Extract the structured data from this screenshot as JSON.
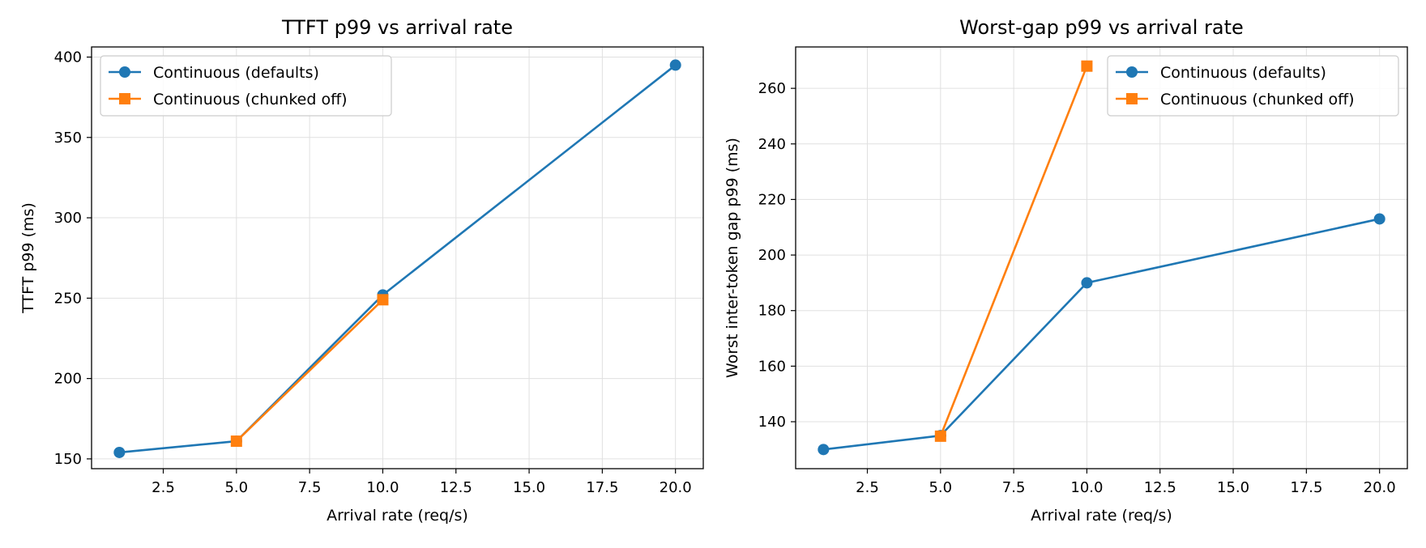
{
  "chart_data": [
    {
      "type": "line",
      "title": "TTFT p99 vs arrival rate",
      "xlabel": "Arrival rate (req/s)",
      "ylabel": "TTFT p99 (ms)",
      "xlim": [
        0.05,
        20.95
      ],
      "ylim": [
        143.9,
        406.3
      ],
      "xticks": [
        2.5,
        5.0,
        7.5,
        10.0,
        12.5,
        15.0,
        17.5,
        20.0
      ],
      "xtick_labels": [
        "2.5",
        "5.0",
        "7.5",
        "10.0",
        "12.5",
        "15.0",
        "17.5",
        "20.0"
      ],
      "yticks": [
        150,
        200,
        250,
        300,
        350,
        400
      ],
      "ytick_labels": [
        "150",
        "200",
        "250",
        "300",
        "350",
        "400"
      ],
      "grid": true,
      "legend": "upper-left",
      "series": [
        {
          "name": "Continuous (defaults)",
          "color": "#1f77b4",
          "marker": "circle",
          "x": [
            1,
            5,
            10,
            20
          ],
          "y": [
            154,
            161,
            252,
            395
          ]
        },
        {
          "name": "Continuous (chunked off)",
          "color": "#ff7f0e",
          "marker": "square",
          "x": [
            5,
            10
          ],
          "y": [
            161,
            249
          ]
        }
      ]
    },
    {
      "type": "line",
      "title": "Worst-gap p99 vs arrival rate",
      "xlabel": "Arrival rate (req/s)",
      "ylabel": "Worst inter-token gap p99 (ms)",
      "xlim": [
        0.05,
        20.95
      ],
      "ylim": [
        123.1,
        274.9
      ],
      "xticks": [
        2.5,
        5.0,
        7.5,
        10.0,
        12.5,
        15.0,
        17.5,
        20.0
      ],
      "xtick_labels": [
        "2.5",
        "5.0",
        "7.5",
        "10.0",
        "12.5",
        "15.0",
        "17.5",
        "20.0"
      ],
      "yticks": [
        140,
        160,
        180,
        200,
        220,
        240,
        260
      ],
      "ytick_labels": [
        "140",
        "160",
        "180",
        "200",
        "220",
        "240",
        "260"
      ],
      "grid": true,
      "legend": "upper-right",
      "series": [
        {
          "name": "Continuous (defaults)",
          "color": "#1f77b4",
          "marker": "circle",
          "x": [
            1,
            5,
            10,
            20
          ],
          "y": [
            130,
            135,
            190,
            213
          ]
        },
        {
          "name": "Continuous (chunked off)",
          "color": "#ff7f0e",
          "marker": "square",
          "x": [
            5,
            10
          ],
          "y": [
            134.8,
            268
          ]
        }
      ]
    }
  ]
}
